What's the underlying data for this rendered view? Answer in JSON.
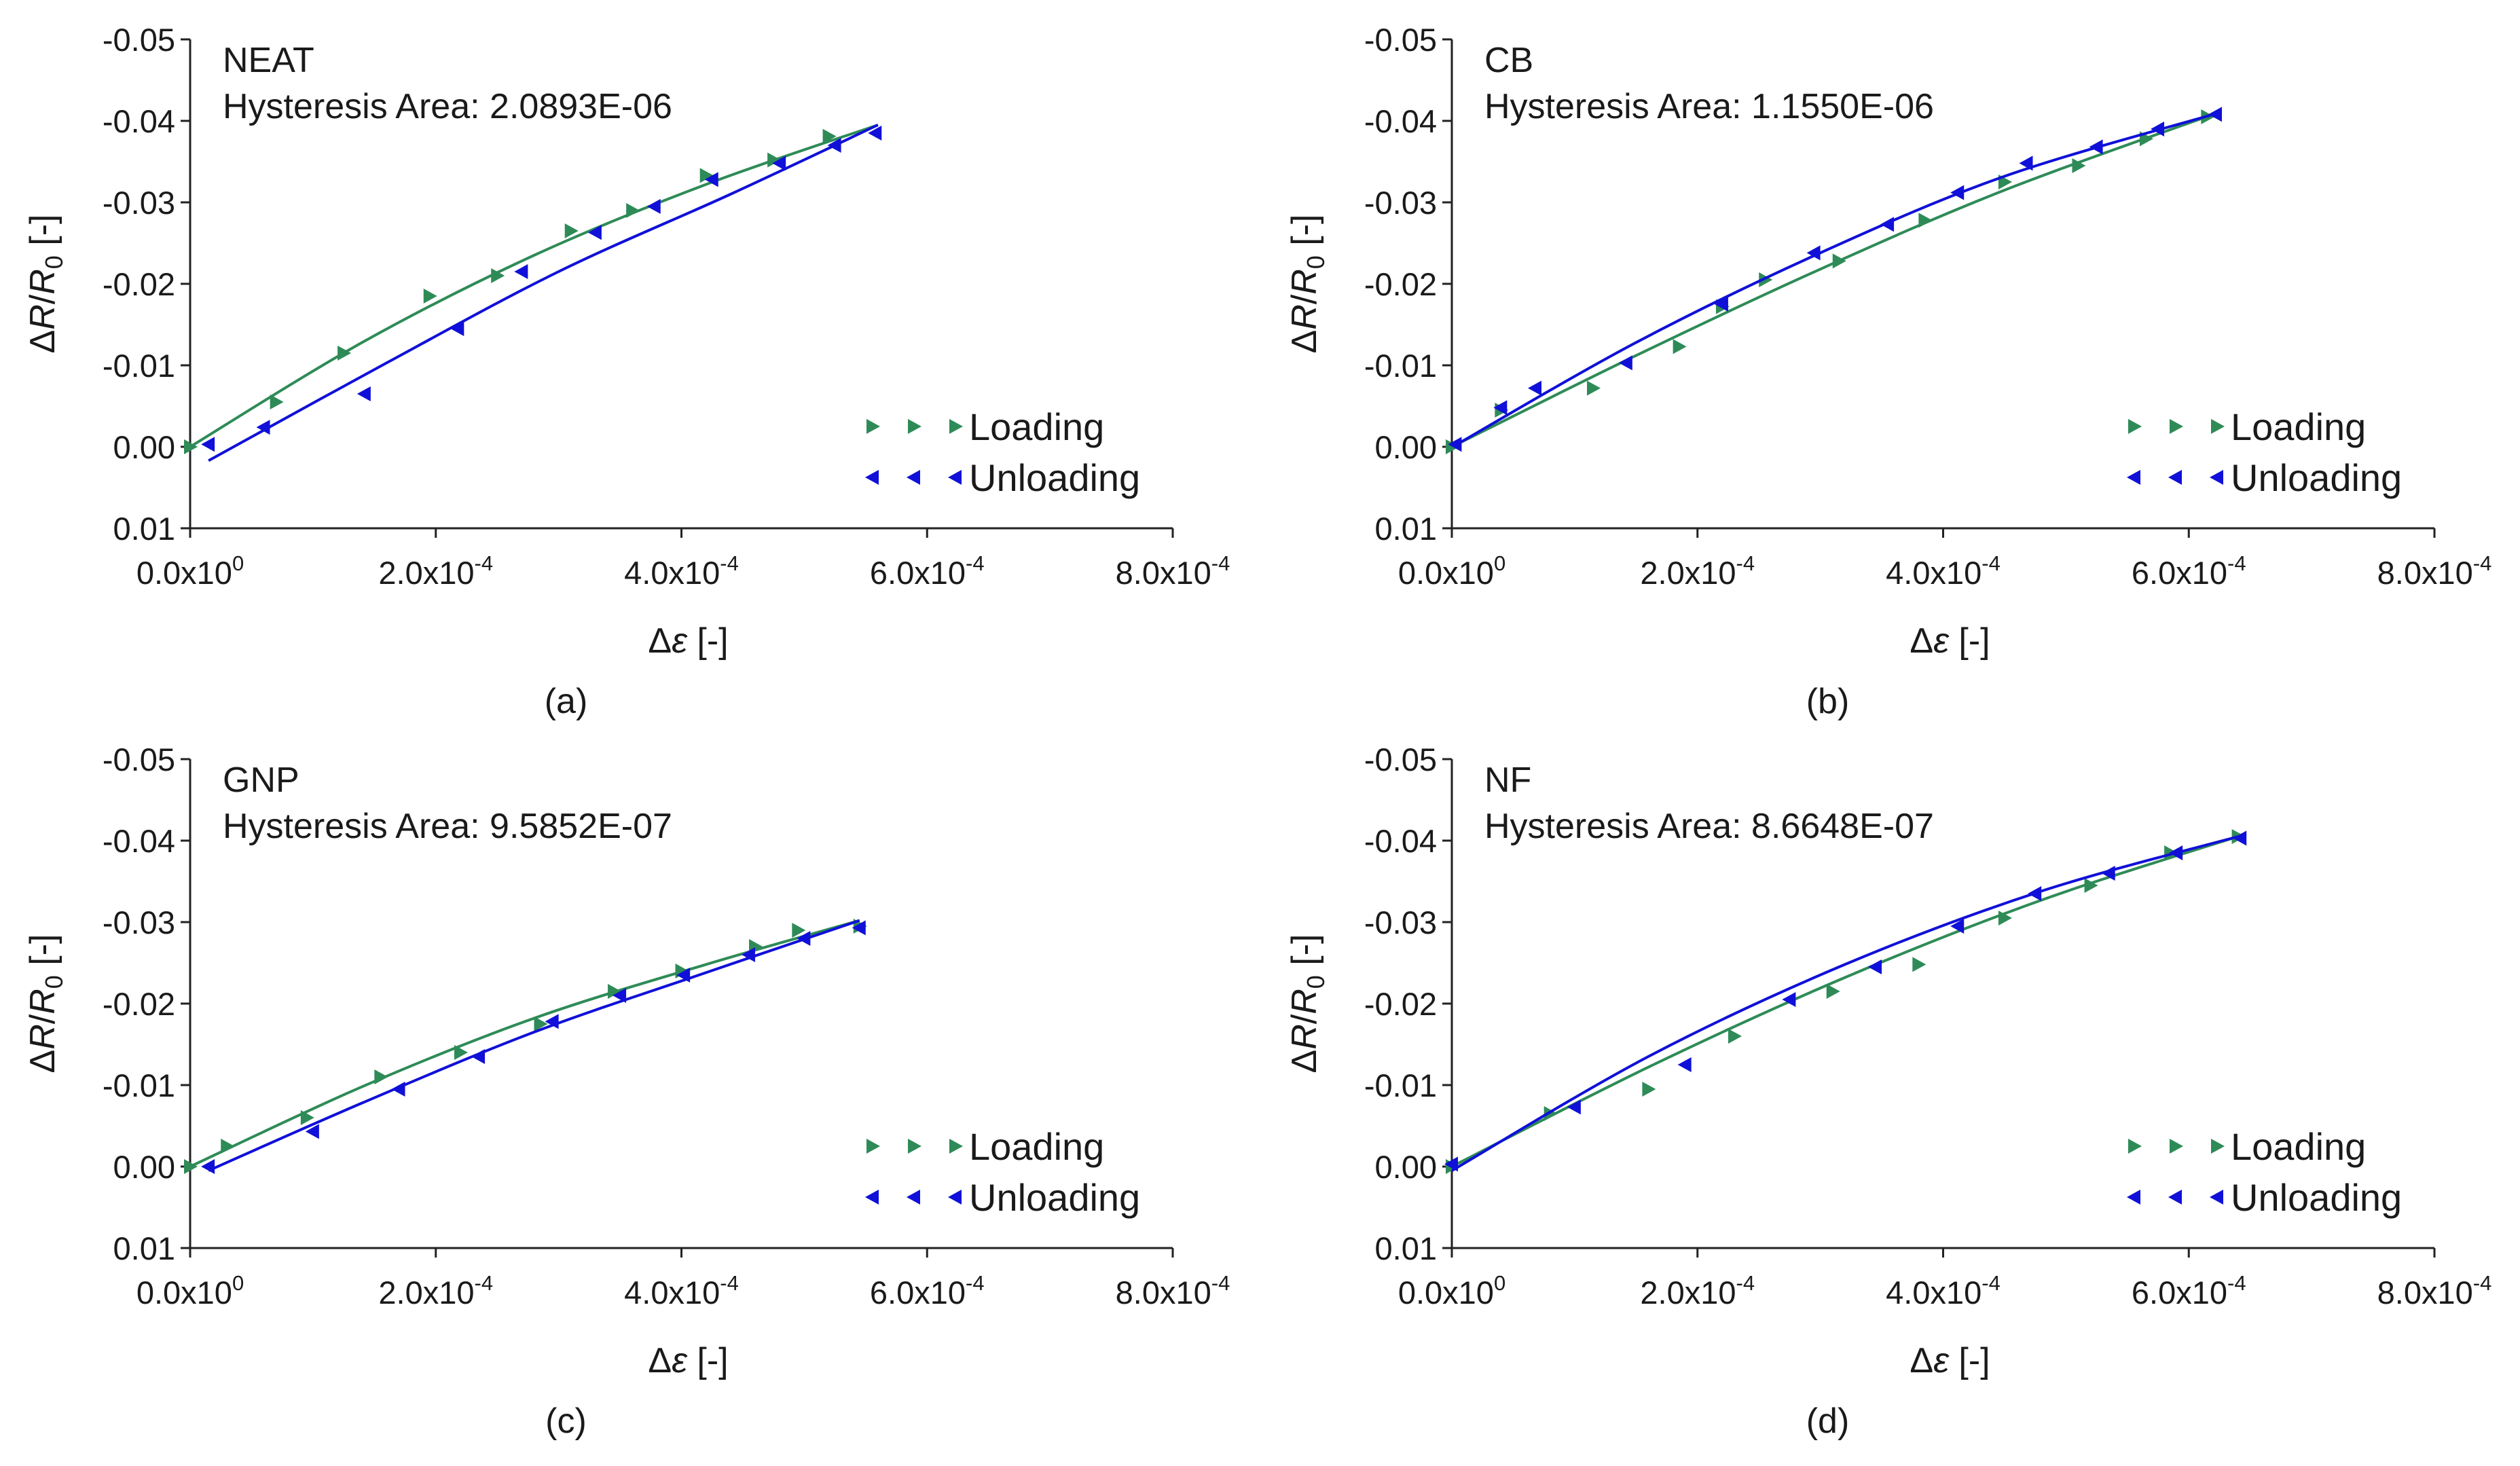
{
  "chart_data": [
    {
      "type": "scatter",
      "label": "(a)",
      "title": "NEAT",
      "hysteresis_label": "Hysteresis Area:",
      "hysteresis_value": "2.0893E-06",
      "xlabel": "Δε [-]",
      "ylabel": "ΔR/R0 [-]",
      "xlim": [
        0,
        0.0008
      ],
      "ylim": [
        0.01,
        -0.05
      ],
      "x_ticks": [
        {
          "value": 0,
          "mantissa": "0.0",
          "exp": "0"
        },
        {
          "value": 0.0002,
          "mantissa": "2.0",
          "exp": "-4"
        },
        {
          "value": 0.0004,
          "mantissa": "4.0",
          "exp": "-4"
        },
        {
          "value": 0.0006,
          "mantissa": "6.0",
          "exp": "-4"
        },
        {
          "value": 0.0008,
          "mantissa": "8.0",
          "exp": "-4"
        }
      ],
      "y_ticks": [
        {
          "value": -0.05,
          "label": "-0.05"
        },
        {
          "value": -0.04,
          "label": "-0.04"
        },
        {
          "value": -0.03,
          "label": "-0.03"
        },
        {
          "value": -0.02,
          "label": "-0.02"
        },
        {
          "value": -0.01,
          "label": "-0.01"
        },
        {
          "value": 0.0,
          "label": "0.00"
        },
        {
          "value": 0.01,
          "label": "0.01"
        }
      ],
      "series": [
        {
          "name": "Loading",
          "color": "#2e8b57",
          "marker": "triangle-right",
          "x": [
            0.0,
            7e-05,
            0.000125,
            0.000195,
            0.00025,
            0.00031,
            0.00036,
            0.00042,
            0.000475,
            0.00052
          ],
          "y": [
            0.0,
            -0.0055,
            -0.0115,
            -0.0185,
            -0.021,
            -0.0265,
            -0.029,
            -0.0333,
            -0.0352,
            -0.0381
          ],
          "fit": [
            [
              0.0,
              0.0
            ],
            [
              0.00014,
              -0.0128
            ],
            [
              0.00028,
              -0.0235
            ],
            [
              0.00042,
              -0.0322
            ],
            [
              0.00056,
              -0.0395
            ]
          ]
        },
        {
          "name": "Unloading",
          "color": "#1010d8",
          "marker": "triangle-left",
          "x": [
            1.5e-05,
            6e-05,
            0.000142,
            0.000218,
            0.00027,
            0.00033,
            0.000378,
            0.000425,
            0.00048,
            0.000525,
            0.000558
          ],
          "y": [
            -0.0003,
            -0.0024,
            -0.0065,
            -0.0145,
            -0.0215,
            -0.0263,
            -0.0295,
            -0.0328,
            -0.0348,
            -0.037,
            -0.0385
          ],
          "fit": [
            [
              1.5e-05,
              0.0017
            ],
            [
              0.00016,
              -0.0103
            ],
            [
              0.0003,
              -0.0215
            ],
            [
              0.00044,
              -0.031
            ],
            [
              0.00056,
              -0.0395
            ]
          ]
        }
      ]
    },
    {
      "type": "scatter",
      "label": "(b)",
      "title": "CB",
      "hysteresis_label": "Hysteresis Area:",
      "hysteresis_value": "1.1550E-06",
      "xlabel": "Δε [-]",
      "ylabel": "ΔR/R0 [-]",
      "xlim": [
        0,
        0.0008
      ],
      "ylim": [
        0.01,
        -0.05
      ],
      "x_ticks": [
        {
          "value": 0,
          "mantissa": "0.0",
          "exp": "0"
        },
        {
          "value": 0.0002,
          "mantissa": "2.0",
          "exp": "-4"
        },
        {
          "value": 0.0004,
          "mantissa": "4.0",
          "exp": "-4"
        },
        {
          "value": 0.0006,
          "mantissa": "6.0",
          "exp": "-4"
        },
        {
          "value": 0.0008,
          "mantissa": "8.0",
          "exp": "-4"
        }
      ],
      "y_ticks": [
        {
          "value": -0.05,
          "label": "-0.05"
        },
        {
          "value": -0.04,
          "label": "-0.04"
        },
        {
          "value": -0.03,
          "label": "-0.03"
        },
        {
          "value": -0.02,
          "label": "-0.02"
        },
        {
          "value": -0.01,
          "label": "-0.01"
        },
        {
          "value": 0.0,
          "label": "0.00"
        },
        {
          "value": 0.01,
          "label": "0.01"
        }
      ],
      "series": [
        {
          "name": "Loading",
          "color": "#2e8b57",
          "marker": "triangle-right",
          "x": [
            0.0,
            4e-05,
            0.000115,
            0.000185,
            0.00022,
            0.000255,
            0.000315,
            0.000385,
            0.00045,
            0.00051,
            0.000565,
            0.000615
          ],
          "y": [
            0.0,
            -0.0045,
            -0.0072,
            -0.0123,
            -0.0172,
            -0.0205,
            -0.0228,
            -0.0278,
            -0.0325,
            -0.0345,
            -0.0378,
            -0.0405
          ],
          "fit": [
            [
              0.0,
              0.0
            ],
            [
              0.00015,
              -0.0112
            ],
            [
              0.0003,
              -0.0218
            ],
            [
              0.00045,
              -0.0315
            ],
            [
              0.00062,
              -0.0408
            ]
          ]
        },
        {
          "name": "Unloading",
          "color": "#1010d8",
          "marker": "triangle-left",
          "x": [
            3e-06,
            4e-05,
            6.8e-05,
            0.000142,
            0.00022,
            0.000295,
            0.000355,
            0.000412,
            0.000468,
            0.000525,
            0.000575,
            0.000622
          ],
          "y": [
            -0.0003,
            -0.0048,
            -0.0072,
            -0.0103,
            -0.0175,
            -0.0238,
            -0.0273,
            -0.0312,
            -0.0348,
            -0.0368,
            -0.039,
            -0.0408
          ],
          "fit": [
            [
              3e-06,
              -0.0002
            ],
            [
              0.00015,
              -0.0128
            ],
            [
              0.0003,
              -0.0238
            ],
            [
              0.00045,
              -0.0332
            ],
            [
              0.00062,
              -0.0408
            ]
          ]
        }
      ]
    },
    {
      "type": "scatter",
      "label": "(c)",
      "title": "GNP",
      "hysteresis_label": "Hysteresis Area:",
      "hysteresis_value": "9.5852E-07",
      "xlabel": "Δε [-]",
      "ylabel": "ΔR/R0 [-]",
      "xlim": [
        0,
        0.0008
      ],
      "ylim": [
        0.01,
        -0.05
      ],
      "x_ticks": [
        {
          "value": 0,
          "mantissa": "0.0",
          "exp": "0"
        },
        {
          "value": 0.0002,
          "mantissa": "2.0",
          "exp": "-4"
        },
        {
          "value": 0.0004,
          "mantissa": "4.0",
          "exp": "-4"
        },
        {
          "value": 0.0006,
          "mantissa": "6.0",
          "exp": "-4"
        },
        {
          "value": 0.0008,
          "mantissa": "8.0",
          "exp": "-4"
        }
      ],
      "y_ticks": [
        {
          "value": -0.05,
          "label": "-0.05"
        },
        {
          "value": -0.04,
          "label": "-0.04"
        },
        {
          "value": -0.03,
          "label": "-0.03"
        },
        {
          "value": -0.02,
          "label": "-0.02"
        },
        {
          "value": -0.01,
          "label": "-0.01"
        },
        {
          "value": 0.0,
          "label": "0.00"
        },
        {
          "value": 0.01,
          "label": "0.01"
        }
      ],
      "series": [
        {
          "name": "Loading",
          "color": "#2e8b57",
          "marker": "triangle-right",
          "x": [
            0.0,
            3e-05,
            9.5e-05,
            0.000155,
            0.00022,
            0.000285,
            0.000345,
            0.0004,
            0.00046,
            0.000495,
            0.000545
          ],
          "y": [
            0.0,
            -0.0025,
            -0.006,
            -0.011,
            -0.014,
            -0.0175,
            -0.0215,
            -0.024,
            -0.027,
            -0.029,
            -0.0295
          ],
          "fit": [
            [
              0.0,
              0.0
            ],
            [
              0.00014,
              -0.0098
            ],
            [
              0.00028,
              -0.0182
            ],
            [
              0.00042,
              -0.0248
            ],
            [
              0.000545,
              -0.0302
            ]
          ]
        },
        {
          "name": "Unloading",
          "color": "#1010d8",
          "marker": "triangle-left",
          "x": [
            1.5e-05,
            0.0001,
            0.00017,
            0.000235,
            0.000295,
            0.00035,
            0.000402,
            0.000455,
            0.0005,
            0.000545
          ],
          "y": [
            0.0,
            -0.0043,
            -0.0095,
            -0.0135,
            -0.0178,
            -0.021,
            -0.0235,
            -0.026,
            -0.028,
            -0.0293
          ],
          "fit": [
            [
              1.5e-05,
              0.0005
            ],
            [
              0.00014,
              -0.0078
            ],
            [
              0.00028,
              -0.0165
            ],
            [
              0.00042,
              -0.0238
            ],
            [
              0.000545,
              -0.0302
            ]
          ]
        }
      ]
    },
    {
      "type": "scatter",
      "label": "(d)",
      "title": "NF",
      "hysteresis_label": "Hysteresis Area:",
      "hysteresis_value": "8.6648E-07",
      "xlabel": "Δε [-]",
      "ylabel": "ΔR/R0 [-]",
      "xlim": [
        0,
        0.0008
      ],
      "ylim": [
        0.01,
        -0.05
      ],
      "x_ticks": [
        {
          "value": 0,
          "mantissa": "0.0",
          "exp": "0"
        },
        {
          "value": 0.0002,
          "mantissa": "2.0",
          "exp": "-4"
        },
        {
          "value": 0.0004,
          "mantissa": "4.0",
          "exp": "-4"
        },
        {
          "value": 0.0006,
          "mantissa": "6.0",
          "exp": "-4"
        },
        {
          "value": 0.0008,
          "mantissa": "8.0",
          "exp": "-4"
        }
      ],
      "y_ticks": [
        {
          "value": -0.05,
          "label": "-0.05"
        },
        {
          "value": -0.04,
          "label": "-0.04"
        },
        {
          "value": -0.03,
          "label": "-0.03"
        },
        {
          "value": -0.02,
          "label": "-0.02"
        },
        {
          "value": -0.01,
          "label": "-0.01"
        },
        {
          "value": 0.0,
          "label": "0.00"
        },
        {
          "value": 0.01,
          "label": "0.01"
        }
      ],
      "series": [
        {
          "name": "Loading",
          "color": "#2e8b57",
          "marker": "triangle-right",
          "x": [
            0.0,
            8e-05,
            0.00016,
            0.00023,
            0.00031,
            0.00038,
            0.00045,
            0.00052,
            0.000585,
            0.00064
          ],
          "y": [
            0.0,
            -0.0065,
            -0.0095,
            -0.016,
            -0.0215,
            -0.0248,
            -0.0305,
            -0.0345,
            -0.0385,
            -0.0405
          ],
          "fit": [
            [
              0.0,
              0.0
            ],
            [
              0.00016,
              -0.0122
            ],
            [
              0.00032,
              -0.0232
            ],
            [
              0.00048,
              -0.0327
            ],
            [
              0.00064,
              -0.0405
            ]
          ]
        },
        {
          "name": "Unloading",
          "color": "#1010d8",
          "marker": "triangle-left",
          "x": [
            0.0,
            0.0001,
            0.00019,
            0.000275,
            0.000345,
            0.000412,
            0.000475,
            0.000535,
            0.00059,
            0.000642
          ],
          "y": [
            -0.0003,
            -0.0073,
            -0.0125,
            -0.0205,
            -0.0245,
            -0.0295,
            -0.0335,
            -0.036,
            -0.0385,
            -0.0403
          ],
          "fit": [
            [
              0.0,
              0.0005
            ],
            [
              0.00016,
              -0.0135
            ],
            [
              0.00032,
              -0.0248
            ],
            [
              0.00048,
              -0.0338
            ],
            [
              0.00064,
              -0.0405
            ]
          ]
        }
      ]
    }
  ]
}
